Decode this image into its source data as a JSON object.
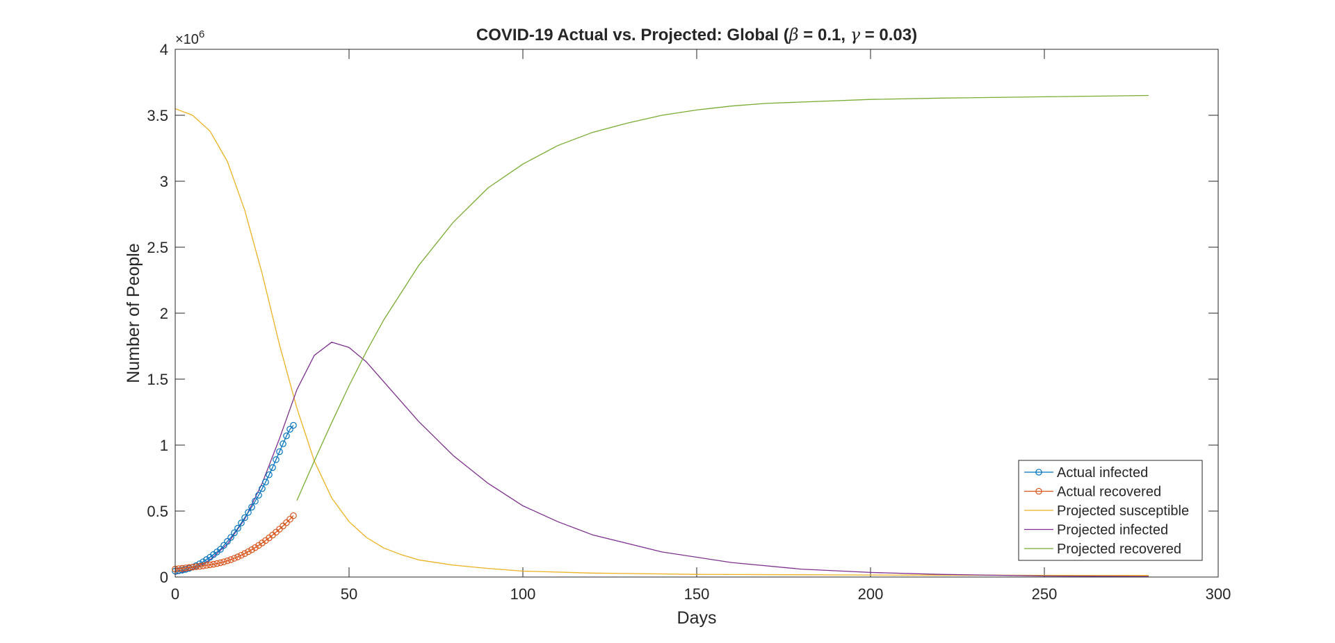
{
  "chart_data": {
    "type": "line",
    "title": {
      "prefix": "COVID-19 Actual vs. Projected: Global (",
      "beta_symbol": "β",
      "beta_text": " = 0.1, ",
      "gamma_symbol": "γ",
      "gamma_text": " = 0.03)"
    },
    "xlabel": "Days",
    "ylabel": "Number of People",
    "y_exponent": {
      "base": "×10",
      "power": "6"
    },
    "xlim": [
      0,
      300
    ],
    "ylim": [
      0,
      4
    ],
    "y_unit_multiplier": 1000000,
    "x_ticks": [
      "0",
      "50",
      "100",
      "150",
      "200",
      "250",
      "300"
    ],
    "y_ticks": [
      "0",
      "0.5",
      "1",
      "1.5",
      "2",
      "2.5",
      "3",
      "3.5",
      "4"
    ],
    "grid": false,
    "legend_position": "bottom-right",
    "series": [
      {
        "name": "Actual infected",
        "color": "#0072BD",
        "marker": "circle",
        "x": [
          0,
          1,
          2,
          3,
          4,
          5,
          6,
          7,
          8,
          9,
          10,
          11,
          12,
          13,
          14,
          15,
          16,
          17,
          18,
          19,
          20,
          21,
          22,
          23,
          24,
          25,
          26,
          27,
          28,
          29,
          30,
          31,
          32,
          33,
          34
        ],
        "y": [
          0.045,
          0.048,
          0.052,
          0.058,
          0.066,
          0.075,
          0.086,
          0.1,
          0.115,
          0.132,
          0.15,
          0.17,
          0.19,
          0.21,
          0.24,
          0.27,
          0.3,
          0.335,
          0.37,
          0.41,
          0.45,
          0.49,
          0.53,
          0.575,
          0.62,
          0.67,
          0.72,
          0.775,
          0.83,
          0.89,
          0.95,
          1.01,
          1.07,
          1.12,
          1.15
        ]
      },
      {
        "name": "Actual recovered",
        "color": "#D95319",
        "marker": "circle",
        "x": [
          0,
          1,
          2,
          3,
          4,
          5,
          6,
          7,
          8,
          9,
          10,
          11,
          12,
          13,
          14,
          15,
          16,
          17,
          18,
          19,
          20,
          21,
          22,
          23,
          24,
          25,
          26,
          27,
          28,
          29,
          30,
          31,
          32,
          33,
          34
        ],
        "y": [
          0.06,
          0.063,
          0.066,
          0.069,
          0.072,
          0.075,
          0.078,
          0.081,
          0.085,
          0.089,
          0.093,
          0.097,
          0.102,
          0.108,
          0.115,
          0.123,
          0.132,
          0.142,
          0.153,
          0.165,
          0.178,
          0.192,
          0.207,
          0.223,
          0.24,
          0.258,
          0.277,
          0.297,
          0.318,
          0.34,
          0.363,
          0.387,
          0.412,
          0.438,
          0.465
        ]
      },
      {
        "name": "Projected susceptible",
        "color": "#EDB120",
        "marker": "none",
        "x": [
          0,
          5,
          10,
          15,
          20,
          25,
          30,
          35,
          40,
          45,
          50,
          55,
          60,
          65,
          70,
          80,
          90,
          100,
          120,
          150,
          200,
          250,
          280
        ],
        "y": [
          3.55,
          3.5,
          3.38,
          3.15,
          2.78,
          2.3,
          1.76,
          1.28,
          0.88,
          0.6,
          0.42,
          0.3,
          0.22,
          0.17,
          0.13,
          0.09,
          0.065,
          0.045,
          0.03,
          0.02,
          0.015,
          0.013,
          0.012
        ]
      },
      {
        "name": "Projected infected",
        "color": "#7E2F8E",
        "marker": "none",
        "x": [
          0,
          5,
          10,
          15,
          20,
          25,
          30,
          35,
          40,
          45,
          50,
          55,
          60,
          65,
          70,
          80,
          90,
          100,
          110,
          120,
          140,
          160,
          180,
          200,
          220,
          250,
          280
        ],
        "y": [
          0.02,
          0.06,
          0.13,
          0.25,
          0.44,
          0.71,
          1.05,
          1.42,
          1.68,
          1.78,
          1.74,
          1.63,
          1.48,
          1.33,
          1.18,
          0.92,
          0.71,
          0.54,
          0.42,
          0.32,
          0.19,
          0.11,
          0.06,
          0.035,
          0.02,
          0.008,
          0.004
        ]
      },
      {
        "name": "Projected recovered",
        "color": "#77AC30",
        "marker": "none",
        "x": [
          35,
          40,
          45,
          50,
          55,
          60,
          70,
          80,
          90,
          100,
          110,
          120,
          130,
          140,
          150,
          160,
          170,
          180,
          200,
          220,
          250,
          280
        ],
        "y": [
          0.58,
          0.88,
          1.17,
          1.45,
          1.71,
          1.95,
          2.36,
          2.69,
          2.95,
          3.13,
          3.27,
          3.37,
          3.44,
          3.5,
          3.54,
          3.57,
          3.59,
          3.6,
          3.62,
          3.63,
          3.64,
          3.65
        ]
      }
    ]
  }
}
